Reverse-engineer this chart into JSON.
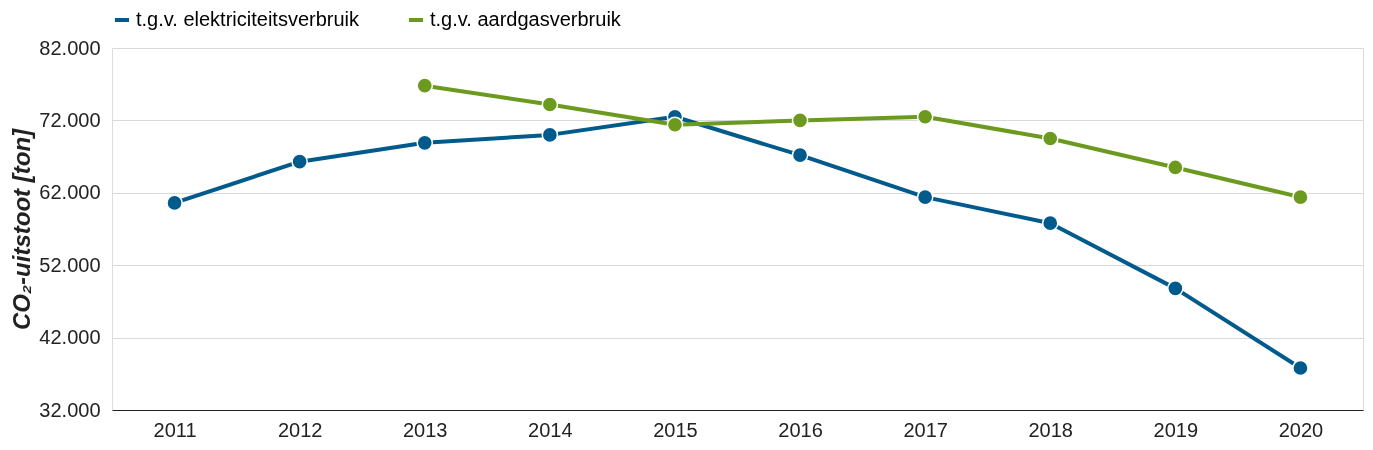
{
  "chart_data": {
    "type": "line",
    "categories": [
      "2011",
      "2012",
      "2013",
      "2014",
      "2015",
      "2016",
      "2017",
      "2018",
      "2019",
      "2020"
    ],
    "ylabel": "CO₂-uitstoot [ton]",
    "series": [
      {
        "name": "t.g.v. elektriciteitsverbruik",
        "color": "#005b8c",
        "values": [
          60600,
          66300,
          68900,
          70000,
          72500,
          67200,
          61400,
          57800,
          48800,
          37800
        ]
      },
      {
        "name": "t.g.v. aardgasverbruik",
        "color": "#6b9a1f",
        "values": [
          null,
          null,
          76800,
          74200,
          71400,
          72000,
          72500,
          69500,
          65500,
          61400
        ]
      }
    ],
    "ylim": [
      32000,
      82000
    ],
    "yticks": [
      {
        "value": 32000,
        "label": "32.000"
      },
      {
        "value": 42000,
        "label": "42.000"
      },
      {
        "value": 52000,
        "label": "52.000"
      },
      {
        "value": 62000,
        "label": "62.000"
      },
      {
        "value": 72000,
        "label": "72.000"
      },
      {
        "value": 82000,
        "label": "82.000"
      }
    ],
    "grid": "y",
    "legend": "top",
    "marker": "circle",
    "line_style": "solid"
  }
}
